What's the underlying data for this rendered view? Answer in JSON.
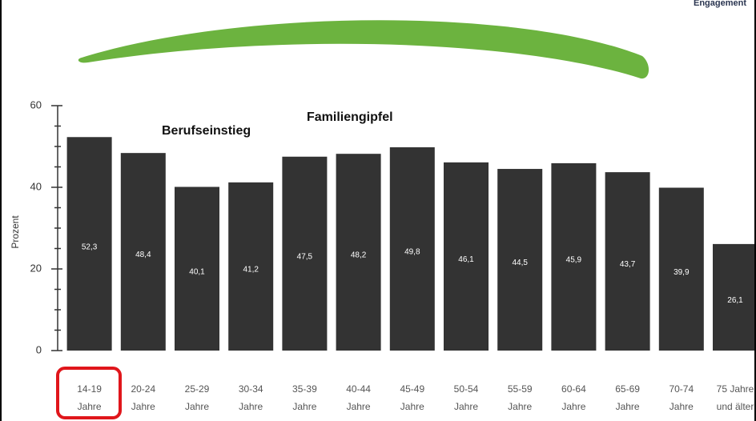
{
  "header": {
    "brand": "Engagement"
  },
  "chart_data": {
    "type": "bar",
    "y_label": "Prozent",
    "annotations": [
      "Berufseinstieg",
      "Familiengipfel"
    ],
    "categories": [
      [
        "14-19",
        "Jahre"
      ],
      [
        "20-24",
        "Jahre"
      ],
      [
        "25-29",
        "Jahre"
      ],
      [
        "30-34",
        "Jahre"
      ],
      [
        "35-39",
        "Jahre"
      ],
      [
        "40-44",
        "Jahre"
      ],
      [
        "45-49",
        "Jahre"
      ],
      [
        "50-54",
        "Jahre"
      ],
      [
        "55-59",
        "Jahre"
      ],
      [
        "60-64",
        "Jahre"
      ],
      [
        "65-69",
        "Jahre"
      ],
      [
        "70-74",
        "Jahre"
      ],
      [
        "75 Jahre",
        "und älter"
      ]
    ],
    "values": [
      52.3,
      48.4,
      40.1,
      41.2,
      47.5,
      48.2,
      49.8,
      46.1,
      44.5,
      45.9,
      43.7,
      39.9,
      26.1
    ],
    "value_labels": [
      "52,3",
      "48,4",
      "40,1",
      "41,2",
      "47,5",
      "48,2",
      "49,8",
      "46,1",
      "44,5",
      "45,9",
      "43,7",
      "39,9",
      "26,1"
    ],
    "color": "#333333",
    "ylim": [
      0,
      60
    ],
    "yticks": [
      0,
      20,
      40,
      60
    ],
    "yticks_minor": [
      5,
      10,
      15,
      25,
      30,
      35,
      45,
      50,
      55
    ]
  }
}
